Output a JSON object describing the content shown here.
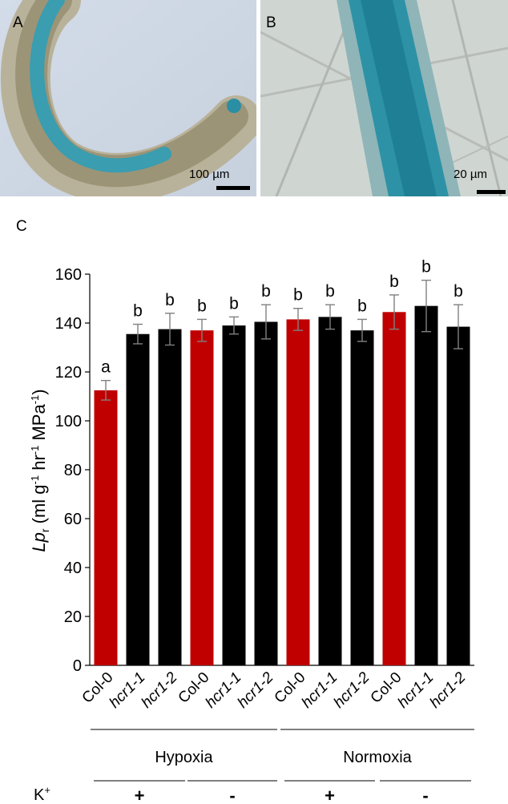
{
  "panels": {
    "a": {
      "label": "A",
      "scale": "100 µm"
    },
    "b": {
      "label": "B",
      "scale": "20 µm"
    },
    "c": {
      "label": "C"
    }
  },
  "colors": {
    "wild_type": "#c00000",
    "mutant": "#000000",
    "error_bar": "#808080",
    "stain": "#2a8fa0"
  },
  "chart_data": {
    "type": "bar",
    "ylabel_main": "Lp",
    "ylabel_sub": "r",
    "ylabel_rest": " (ml g",
    "ylabel_sup1": "-1",
    "ylabel_mid1": " hr",
    "ylabel_sup2": "-1",
    "ylabel_mid2": " MPa",
    "ylabel_sup3": "-1",
    "ylabel_end": ")",
    "ylim": [
      0,
      160
    ],
    "yticks": [
      0,
      20,
      40,
      60,
      80,
      100,
      120,
      140,
      160
    ],
    "categories": [
      "Col-0",
      "hcr1-1",
      "hcr1-2",
      "Col-0",
      "hcr1-1",
      "hcr1-2",
      "Col-0",
      "hcr1-1",
      "hcr1-2",
      "Col-0",
      "hcr1-1",
      "hcr1-2"
    ],
    "italic_categories": [
      false,
      true,
      true,
      false,
      true,
      true,
      false,
      true,
      true,
      false,
      true,
      true
    ],
    "values": [
      112.5,
      135.5,
      137.5,
      137,
      139,
      140.5,
      141.5,
      142.5,
      137,
      144.5,
      147,
      138.5
    ],
    "errors": [
      4,
      4,
      6.5,
      4.5,
      3.5,
      7,
      4.5,
      5,
      4.5,
      7,
      10.5,
      9
    ],
    "letters": [
      "a",
      "b",
      "b",
      "b",
      "b",
      "b",
      "b",
      "b",
      "b",
      "b",
      "b",
      "b"
    ],
    "bar_color_keys": [
      "wild_type",
      "mutant",
      "mutant",
      "wild_type",
      "mutant",
      "mutant",
      "wild_type",
      "mutant",
      "mutant",
      "wild_type",
      "mutant",
      "mutant"
    ],
    "conditions": [
      "Hypoxia",
      "Normoxia"
    ],
    "k_label": "K",
    "k_sup": "+",
    "k_levels": [
      "+",
      "-",
      "+",
      "-"
    ]
  }
}
